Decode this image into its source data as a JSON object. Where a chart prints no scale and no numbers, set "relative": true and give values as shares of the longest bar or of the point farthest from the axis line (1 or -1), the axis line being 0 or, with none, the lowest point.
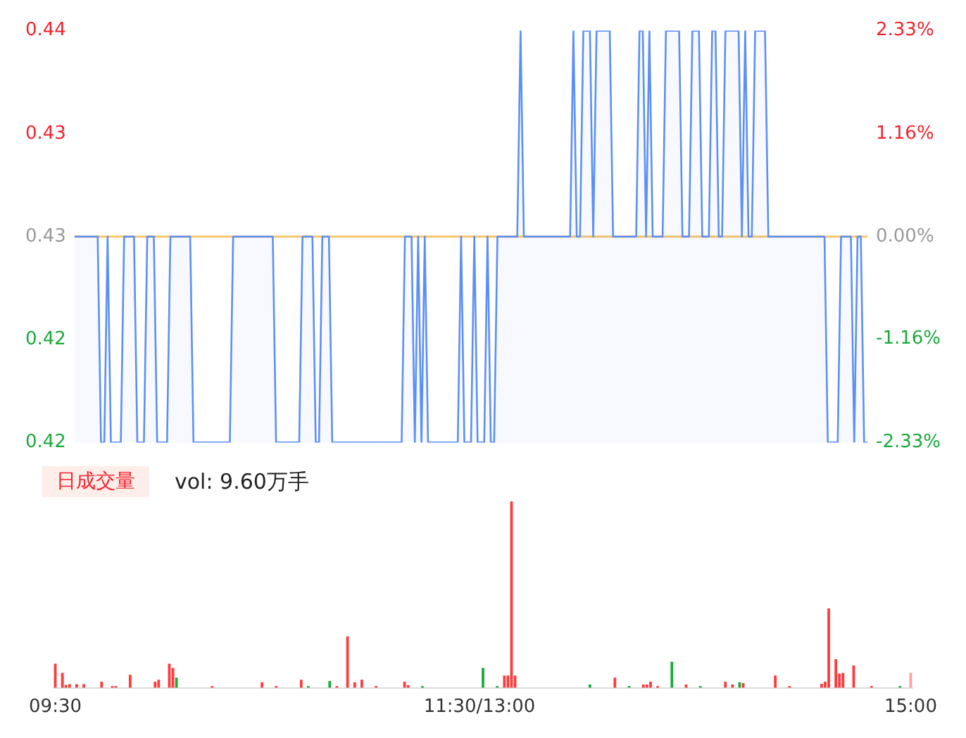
{
  "chart_data": [
    {
      "type": "line",
      "categories": [
        null,
        null,
        null,
        null,
        null,
        null,
        null,
        null,
        null,
        null,
        null,
        null,
        null,
        null,
        null,
        null,
        null,
        null,
        null,
        null,
        null,
        null,
        null,
        null,
        null,
        null,
        null,
        null,
        null,
        null,
        null,
        null,
        null,
        null,
        null,
        null,
        null,
        null,
        null,
        null,
        null,
        null,
        null,
        null,
        null,
        null,
        null,
        null,
        null,
        null,
        null,
        null,
        null,
        null,
        null,
        null,
        null,
        null,
        null,
        null,
        null,
        null,
        null,
        null,
        null,
        null,
        null,
        null,
        null,
        null,
        null,
        null,
        null,
        null,
        null,
        null,
        null,
        null,
        null,
        null,
        null,
        null,
        null,
        null,
        null,
        null,
        null,
        null,
        null,
        null,
        null,
        null,
        null,
        null,
        null,
        null,
        null,
        null,
        null,
        null,
        null,
        null,
        null,
        null,
        null,
        null,
        null,
        null,
        null,
        null,
        null,
        null,
        null,
        null,
        null,
        null,
        null,
        null,
        null,
        null,
        null,
        null,
        null,
        null,
        null,
        null,
        null,
        null,
        null,
        null,
        null,
        null,
        null,
        null,
        null,
        null,
        null,
        null,
        null,
        null,
        null,
        null,
        null,
        null,
        null,
        null,
        null,
        null,
        null,
        null,
        null,
        null,
        null,
        null,
        null,
        null,
        null,
        null,
        null,
        null,
        null,
        null,
        null,
        null,
        null,
        null,
        null,
        null,
        null,
        null,
        null,
        null,
        null,
        null,
        null,
        null,
        null,
        null,
        null,
        null,
        null,
        null,
        null,
        null,
        null,
        null,
        null,
        null,
        null,
        null,
        null,
        null,
        null,
        null,
        null,
        null,
        null,
        null,
        null,
        null,
        null,
        null,
        null,
        null,
        null,
        null,
        null,
        null,
        null,
        null,
        null,
        null,
        null,
        null,
        null,
        null,
        null,
        null,
        null,
        null,
        null,
        null,
        null,
        null,
        null,
        null,
        null,
        null,
        null,
        null,
        null,
        null,
        null,
        null,
        null,
        null,
        null,
        null,
        null,
        null,
        null
      ],
      "series": [
        {
          "type": "area",
          "color": "#5b8ff9",
          "values": [
            0.43,
            0.43,
            0.43,
            0.43,
            0.43,
            0.43,
            0.43,
            0.43,
            0.42,
            0.42,
            0.43,
            0.42,
            0.42,
            0.42,
            0.42,
            0.43,
            0.43,
            0.43,
            0.43,
            0.42,
            0.42,
            0.42,
            0.43,
            0.43,
            0.43,
            0.42,
            0.42,
            0.42,
            0.42,
            0.43,
            0.43,
            0.43,
            0.43,
            0.43,
            0.43,
            0.43,
            0.42,
            0.42,
            0.42,
            0.42,
            0.42,
            0.42,
            0.42,
            0.42,
            0.42,
            0.42,
            0.42,
            0.42,
            0.43,
            0.43,
            0.43,
            0.43,
            0.43,
            0.43,
            0.43,
            0.43,
            0.43,
            0.43,
            0.43,
            0.43,
            0.43,
            0.42,
            0.42,
            0.42,
            0.42,
            0.42,
            0.42,
            0.42,
            0.42,
            0.43,
            0.43,
            0.43,
            0.43,
            0.42,
            0.42,
            0.43,
            0.43,
            0.43,
            0.42,
            0.42,
            0.42,
            0.42,
            0.42,
            0.42,
            0.42,
            0.42,
            0.42,
            0.42,
            0.42,
            0.42,
            0.42,
            0.42,
            0.42,
            0.42,
            0.42,
            0.42,
            0.42,
            0.42,
            0.42,
            0.42,
            0.43,
            0.43,
            0.43,
            0.42,
            0.43,
            0.42,
            0.43,
            0.42,
            0.42,
            0.42,
            0.42,
            0.42,
            0.42,
            0.42,
            0.42,
            0.42,
            0.42,
            0.43,
            0.42,
            0.42,
            0.42,
            0.43,
            0.42,
            0.42,
            0.42,
            0.43,
            0.42,
            0.42,
            0.43,
            0.43,
            0.43,
            0.43,
            0.43,
            0.43,
            0.43,
            0.44,
            0.43,
            0.43,
            0.43,
            0.43,
            0.43,
            0.43,
            0.43,
            0.43,
            0.43,
            0.43,
            0.43,
            0.43,
            0.43,
            0.43,
            0.43,
            0.44,
            0.43,
            0.43,
            0.44,
            0.44,
            0.44,
            0.43,
            0.44,
            0.44,
            0.44,
            0.44,
            0.44,
            0.43,
            0.43,
            0.43,
            0.43,
            0.43,
            0.43,
            0.43,
            0.43,
            0.44,
            0.44,
            0.43,
            0.44,
            0.43,
            0.43,
            0.43,
            0.43,
            0.44,
            0.44,
            0.44,
            0.44,
            0.44,
            0.43,
            0.43,
            0.43,
            0.44,
            0.44,
            0.44,
            0.43,
            0.43,
            0.43,
            0.44,
            0.44,
            0.43,
            0.43,
            0.44,
            0.44,
            0.44,
            0.44,
            0.44,
            0.43,
            0.44,
            0.43,
            0.43,
            0.44,
            0.44,
            0.44,
            0.44,
            0.43,
            0.43,
            0.43,
            0.43,
            0.43,
            0.43,
            0.43,
            0.43,
            0.43,
            0.43,
            0.43,
            0.43,
            0.43,
            0.43,
            0.43,
            0.43,
            0.43,
            0.43,
            0.42,
            0.42,
            0.42,
            0.42,
            0.43,
            0.43,
            0.43,
            0.43,
            0.42,
            0.43,
            0.43,
            0.42,
            0.42
          ]
        }
      ],
      "ref_lines": [
        {
          "axis": "y",
          "value": 0.43,
          "color": "#f7c56a"
        }
      ],
      "ylim": [
        0.42,
        0.44
      ],
      "yticks": [
        0.42,
        {
          "value": 0.425,
          "label": "0.42"
        },
        0.43,
        {
          "value": 0.435,
          "label": "0.43"
        },
        0.44
      ],
      "y2lim": [
        -2.33,
        2.33
      ],
      "y2ticks": [
        {
          "value": -2.33,
          "label": "-2.33%"
        },
        {
          "value": -1.16,
          "label": "-1.16%"
        },
        {
          "value": 0,
          "label": "0.00%"
        },
        {
          "value": 1.16,
          "label": "1.16%"
        },
        {
          "value": 2.33,
          "label": "2.33%"
        }
      ],
      "tick_labels": "y",
      "marker": "none"
    },
    {
      "type": "bar",
      "relative": true,
      "categories": [
        "09:30",
        null,
        null,
        null,
        null,
        null,
        null,
        null,
        null,
        null,
        null,
        null,
        null,
        null,
        null,
        null,
        null,
        null,
        null,
        null,
        null,
        null,
        null,
        null,
        null,
        null,
        null,
        null,
        null,
        null,
        null,
        null,
        null,
        null,
        null,
        null,
        null,
        null,
        null,
        null,
        null,
        null,
        null,
        null,
        null,
        null,
        null,
        null,
        null,
        null,
        null,
        null,
        null,
        null,
        null,
        null,
        null,
        null,
        null,
        null,
        null,
        null,
        null,
        null,
        null,
        null,
        null,
        null,
        null,
        null,
        null,
        null,
        null,
        null,
        null,
        null,
        null,
        null,
        null,
        null,
        null,
        null,
        null,
        null,
        null,
        null,
        null,
        null,
        null,
        null,
        null,
        null,
        null,
        null,
        null,
        null,
        null,
        null,
        null,
        null,
        null,
        null,
        null,
        null,
        null,
        null,
        null,
        null,
        null,
        null,
        null,
        null,
        null,
        null,
        null,
        null,
        null,
        null,
        null,
        "11:30/13:00",
        null,
        null,
        null,
        null,
        null,
        null,
        null,
        null,
        null,
        null,
        null,
        null,
        null,
        null,
        null,
        null,
        null,
        null,
        null,
        null,
        null,
        null,
        null,
        null,
        null,
        null,
        null,
        null,
        null,
        null,
        null,
        null,
        null,
        null,
        null,
        null,
        null,
        null,
        null,
        null,
        null,
        null,
        null,
        null,
        null,
        null,
        null,
        null,
        null,
        null,
        null,
        null,
        null,
        null,
        null,
        null,
        null,
        null,
        null,
        null,
        null,
        null,
        null,
        null,
        null,
        null,
        null,
        null,
        null,
        null,
        null,
        null,
        null,
        null,
        null,
        null,
        null,
        null,
        null,
        null,
        null,
        null,
        null,
        null,
        null,
        null,
        null,
        null,
        null,
        null,
        null,
        null,
        null,
        null,
        null,
        null,
        null,
        null,
        null,
        null,
        null,
        null,
        null,
        null,
        null,
        null,
        null,
        null,
        null,
        null,
        null,
        null,
        null,
        null,
        null,
        null,
        null,
        null,
        null,
        null,
        "15:00"
      ],
      "values": [
        0.13,
        null,
        0.08,
        0.015,
        0.02,
        null,
        0.02,
        null,
        0.02,
        null,
        null,
        null,
        null,
        0.033,
        null,
        null,
        0.01,
        0.01,
        null,
        null,
        null,
        0.07,
        null,
        null,
        null,
        null,
        null,
        null,
        0.033,
        0.044,
        null,
        null,
        0.13,
        0.107,
        0.055,
        null,
        null,
        null,
        null,
        null,
        null,
        null,
        null,
        null,
        0.01,
        null,
        null,
        null,
        null,
        null,
        null,
        null,
        null,
        null,
        null,
        null,
        null,
        null,
        0.03,
        null,
        null,
        null,
        0.01,
        null,
        null,
        null,
        null,
        null,
        null,
        0.044,
        null,
        0.01,
        null,
        null,
        null,
        null,
        null,
        0.037,
        null,
        0.01,
        null,
        null,
        0.276,
        null,
        0.03,
        null,
        0.044,
        null,
        null,
        null,
        0.01,
        null,
        null,
        null,
        null,
        null,
        null,
        null,
        0.033,
        0.015,
        null,
        null,
        null,
        0.01,
        null,
        null,
        null,
        null,
        null,
        null,
        null,
        null,
        null,
        null,
        null,
        null,
        null,
        null,
        null,
        null,
        0.107,
        null,
        null,
        null,
        0.01,
        null,
        0.066,
        0.066,
        1,
        0.066,
        null,
        null,
        null,
        null,
        null,
        null,
        null,
        null,
        null,
        null,
        null,
        null,
        null,
        null,
        null,
        null,
        null,
        null,
        null,
        null,
        0.018,
        null,
        null,
        null,
        null,
        null,
        null,
        0.055,
        null,
        null,
        null,
        0.01,
        null,
        null,
        null,
        0.018,
        0.018,
        0.033,
        null,
        0.01,
        null,
        null,
        null,
        0.14,
        null,
        null,
        null,
        0.018,
        null,
        null,
        null,
        0.01,
        null,
        null,
        null,
        null,
        null,
        null,
        0.033,
        null,
        0.018,
        null,
        0.03,
        0.026,
        null,
        null,
        null,
        null,
        null,
        null,
        null,
        null,
        0.066,
        null,
        null,
        null,
        0.01,
        null,
        null,
        null,
        null,
        null,
        null,
        null,
        null,
        0.022,
        0.033,
        0.426,
        null,
        0.154,
        0.077,
        0.08,
        null,
        null,
        0.12,
        null,
        null,
        null,
        null,
        0.01,
        null,
        null,
        null,
        null,
        null,
        null,
        null,
        0.01,
        null,
        null,
        0.08
      ],
      "colors": [
        "#ff3b3b",
        "#ff3b3b",
        "#ff3b3b",
        "#ff3b3b",
        "#ff3b3b",
        "#ff3b3b",
        "#ff3b3b",
        "#ff3b3b",
        "#ff3b3b",
        "#ff3b3b",
        "#ff3b3b",
        "#ff3b3b",
        "#ff3b3b",
        "#ff3b3b",
        "#ff3b3b",
        "#ff3b3b",
        "#ff3b3b",
        "#ff3b3b",
        "#ff3b3b",
        "#ff3b3b",
        "#ff3b3b",
        "#ff3b3b",
        "#ff3b3b",
        "#ff3b3b",
        "#ff3b3b",
        "#ff3b3b",
        "#ff3b3b",
        "#ff3b3b",
        "#ff3b3b",
        "#ff3b3b",
        "#ff3b3b",
        "#ff3b3b",
        "#ff3b3b",
        "#ff3b3b",
        "#1aaa3c",
        "#ff3b3b",
        "#ff3b3b",
        "#ff3b3b",
        "#ff3b3b",
        "#ff3b3b",
        "#ff3b3b",
        "#ff3b3b",
        "#ff3b3b",
        "#ff3b3b",
        "#ff3b3b",
        "#ff3b3b",
        "#ff3b3b",
        "#ff3b3b",
        "#ff3b3b",
        "#ff3b3b",
        "#ff3b3b",
        "#ff3b3b",
        "#ff3b3b",
        "#ff3b3b",
        "#ff3b3b",
        "#ff3b3b",
        "#ff3b3b",
        "#ff3b3b",
        "#ff3b3b",
        "#ff3b3b",
        "#ff3b3b",
        "#ff3b3b",
        "#ff3b3b",
        "#ff3b3b",
        "#ff3b3b",
        "#ff3b3b",
        "#ff3b3b",
        "#ff3b3b",
        "#ff3b3b",
        "#ff3b3b",
        "#ff3b3b",
        "#1aaa3c",
        "#ff3b3b",
        "#ff3b3b",
        "#ff3b3b",
        "#ff3b3b",
        "#ff3b3b",
        "#1aaa3c",
        "#ff3b3b",
        "#ff3b3b",
        "#ff3b3b",
        "#ff3b3b",
        "#ff3b3b",
        "#ff3b3b",
        "#ff3b3b",
        "#ff3b3b",
        "#ff3b3b",
        "#ff3b3b",
        "#ff3b3b",
        "#ff3b3b",
        "#ff3b3b",
        "#ff3b3b",
        "#ff3b3b",
        "#ff3b3b",
        "#ff3b3b",
        "#ff3b3b",
        "#ff3b3b",
        "#ff3b3b",
        "#ff3b3b",
        "#ff3b3b",
        "#ff3b3b",
        "#ff3b3b",
        "#ff3b3b",
        "#1aaa3c",
        "#ff3b3b",
        "#ff3b3b",
        "#ff3b3b",
        "#ff3b3b",
        "#ff3b3b",
        "#ff3b3b",
        "#ff3b3b",
        "#ff3b3b",
        "#ff3b3b",
        "#ff3b3b",
        "#ff3b3b",
        "#ff3b3b",
        "#ff3b3b",
        "#ff3b3b",
        "#ff3b3b",
        "#ff3b3b",
        "#1aaa3c",
        "#ff3b3b",
        "#ff3b3b",
        "#ff3b3b",
        "#1aaa3c",
        "#ff3b3b",
        "#ff3b3b",
        "#ff3b3b",
        "#ff3b3b",
        "#ff3b3b",
        "#ff3b3b",
        "#ff3b3b",
        "#ff3b3b",
        "#ff3b3b",
        "#ff3b3b",
        "#ff3b3b",
        "#ff3b3b",
        "#ff3b3b",
        "#ff3b3b",
        "#ff3b3b",
        "#ff3b3b",
        "#ff3b3b",
        "#ff3b3b",
        "#ff3b3b",
        "#ff3b3b",
        "#ff3b3b",
        "#ff3b3b",
        "#ff3b3b",
        "#ff3b3b",
        "#ff3b3b",
        "#1aaa3c",
        "#ff3b3b",
        "#ff3b3b",
        "#ff3b3b",
        "#ff3b3b",
        "#ff3b3b",
        "#ff3b3b",
        "#ff3b3b",
        "#ff3b3b",
        "#ff3b3b",
        "#ff3b3b",
        "#1aaa3c",
        "#ff3b3b",
        "#ff3b3b",
        "#ff3b3b",
        "#ff3b3b",
        "#ff3b3b",
        "#ff3b3b",
        "#ff3b3b",
        "#ff3b3b",
        "#ff3b3b",
        "#ff3b3b",
        "#ff3b3b",
        "#1aaa3c",
        "#ff3b3b",
        "#ff3b3b",
        "#ff3b3b",
        "#ff3b3b",
        "#ff3b3b",
        "#ff3b3b",
        "#ff3b3b",
        "#1aaa3c",
        "#ff3b3b",
        "#ff3b3b",
        "#ff3b3b",
        "#ff3b3b",
        "#ff3b3b",
        "#ff3b3b",
        "#ff3b3b",
        "#ff3b3b",
        "#ff3b3b",
        "#ff3b3b",
        "#1aaa3c",
        "#ff3b3b",
        "#ff3b3b",
        "#ff3b3b",
        "#ff3b3b",
        "#ff3b3b",
        "#ff3b3b",
        "#ff3b3b",
        "#ff3b3b",
        "#ff3b3b",
        "#ff3b3b",
        "#ff3b3b",
        "#ff3b3b",
        "#ff3b3b",
        "#ff3b3b",
        "#ff3b3b",
        "#ff3b3b",
        "#ff3b3b",
        "#ff3b3b",
        "#ff3b3b",
        "#ff3b3b",
        "#ff3b3b",
        "#ff3b3b",
        "#ff3b3b",
        "#ff3b3b",
        "#ff3b3b",
        "#ff3b3b",
        "#ff3b3b",
        "#ff3b3b",
        "#ff3b3b",
        "#ff3b3b",
        "#ff3b3b",
        "#ff3b3b",
        "#ff3b3b",
        "#ff3b3b",
        "#ff3b3b",
        "#ff3b3b",
        "#ff3b3b",
        "#ff3b3b",
        "#ff3b3b",
        "#ff3b3b",
        "#ff3b3b",
        "#ff3b3b",
        "#ff3b3b",
        "#ff3b3b",
        "#1aaa3c",
        "#ff3b3b",
        "#ff3b3b",
        "#ffa0a0"
      ],
      "tick_labels": "x",
      "annotations": [
        "日成交量",
        "vol: 9.60万手"
      ]
    }
  ]
}
